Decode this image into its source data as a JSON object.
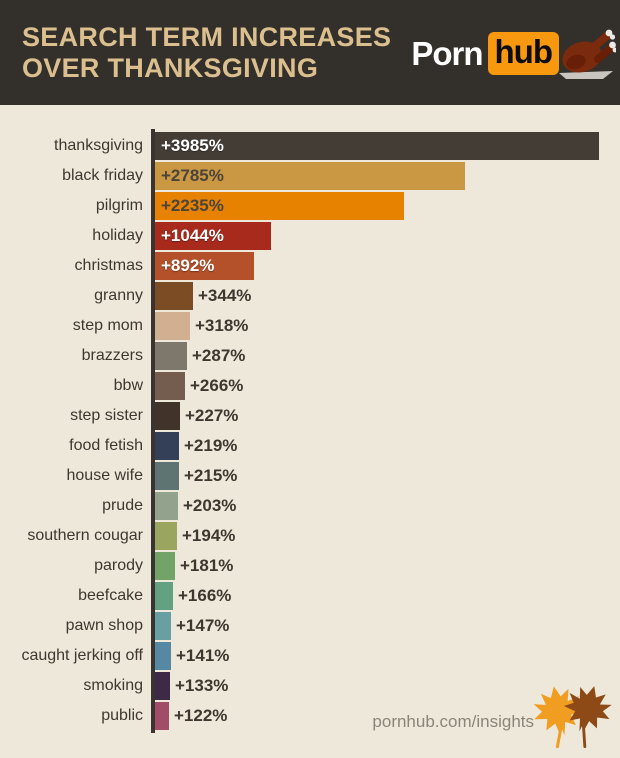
{
  "header": {
    "title_line1": "SEARCH TERM INCREASES",
    "title_line2": "OVER THANKSGIVING",
    "title_color": "#dbbf8e",
    "bg_color": "#332f2b",
    "logo": {
      "part1": "Porn",
      "part2": "hub",
      "badge_color": "#f8980f",
      "icon": "roast-turkey-icon"
    }
  },
  "chart_data": {
    "type": "bar",
    "orientation": "horizontal",
    "title": "SEARCH TERM INCREASES OVER THANKSGIVING",
    "xlabel": "",
    "ylabel": "",
    "xlim": [
      0,
      3985
    ],
    "grid": false,
    "legend": false,
    "axis_color": "#393430",
    "categories": [
      "thanksgiving",
      "black friday",
      "pilgrim",
      "holiday",
      "christmas",
      "granny",
      "step mom",
      "brazzers",
      "bbw",
      "step sister",
      "food fetish",
      "house wife",
      "prude",
      "southern cougar",
      "parody",
      "beefcake",
      "pawn shop",
      "caught jerking off",
      "smoking",
      "public"
    ],
    "values": [
      3985,
      2785,
      2235,
      1044,
      892,
      344,
      318,
      287,
      266,
      227,
      219,
      215,
      203,
      194,
      181,
      166,
      147,
      141,
      133,
      122
    ],
    "bars": [
      {
        "term": "thanksgiving",
        "value": 3985,
        "label": "+3985%",
        "color": "#443d36",
        "label_inside": true,
        "label_color": "#ffffff"
      },
      {
        "term": "black friday",
        "value": 2785,
        "label": "+2785%",
        "color": "#ca9743",
        "label_inside": true,
        "label_color": "#4b443b"
      },
      {
        "term": "pilgrim",
        "value": 2235,
        "label": "+2235%",
        "color": "#e68200",
        "label_inside": true,
        "label_color": "#4b443b"
      },
      {
        "term": "holiday",
        "value": 1044,
        "label": "+1044%",
        "color": "#a72a1d",
        "label_inside": true,
        "label_color": "#ffffff"
      },
      {
        "term": "christmas",
        "value": 892,
        "label": "+892%",
        "color": "#b4512a",
        "label_inside": true,
        "label_color": "#ffffff"
      },
      {
        "term": "granny",
        "value": 344,
        "label": "+344%",
        "color": "#7c4c24",
        "label_inside": false,
        "label_color": "#3d372f"
      },
      {
        "term": "step mom",
        "value": 318,
        "label": "+318%",
        "color": "#d0b090",
        "label_inside": false,
        "label_color": "#3d372f"
      },
      {
        "term": "brazzers",
        "value": 287,
        "label": "+287%",
        "color": "#7d776c",
        "label_inside": false,
        "label_color": "#3d372f"
      },
      {
        "term": "bbw",
        "value": 266,
        "label": "+266%",
        "color": "#745c4e",
        "label_inside": false,
        "label_color": "#3d372f"
      },
      {
        "term": "step sister",
        "value": 227,
        "label": "+227%",
        "color": "#40332a",
        "label_inside": false,
        "label_color": "#3d372f"
      },
      {
        "term": "food fetish",
        "value": 219,
        "label": "+219%",
        "color": "#344057",
        "label_inside": false,
        "label_color": "#3d372f"
      },
      {
        "term": "house wife",
        "value": 215,
        "label": "+215%",
        "color": "#5d7473",
        "label_inside": false,
        "label_color": "#3d372f"
      },
      {
        "term": "prude",
        "value": 203,
        "label": "+203%",
        "color": "#93a28c",
        "label_inside": false,
        "label_color": "#3d372f"
      },
      {
        "term": "southern cougar",
        "value": 194,
        "label": "+194%",
        "color": "#9aa55f",
        "label_inside": false,
        "label_color": "#3d372f"
      },
      {
        "term": "parody",
        "value": 181,
        "label": "+181%",
        "color": "#72a468",
        "label_inside": false,
        "label_color": "#3d372f"
      },
      {
        "term": "beefcake",
        "value": 166,
        "label": "+166%",
        "color": "#64a183",
        "label_inside": false,
        "label_color": "#3d372f"
      },
      {
        "term": "pawn shop",
        "value": 147,
        "label": "+147%",
        "color": "#689fa3",
        "label_inside": false,
        "label_color": "#3d372f"
      },
      {
        "term": "caught jerking off",
        "value": 141,
        "label": "+141%",
        "color": "#5688a3",
        "label_inside": false,
        "label_color": "#3d372f"
      },
      {
        "term": "smoking",
        "value": 133,
        "label": "+133%",
        "color": "#3c2a47",
        "label_inside": false,
        "label_color": "#3d372f"
      },
      {
        "term": "public",
        "value": 122,
        "label": "+122%",
        "color": "#a24d68",
        "label_inside": false,
        "label_color": "#3d372f"
      }
    ]
  },
  "footer": {
    "link_text": "pornhub.com/insights",
    "text_color": "#8c8478",
    "icon": "maple-leaves-icon",
    "leaf_colors": [
      "#f09d22",
      "#8d4a16"
    ]
  },
  "page": {
    "bg_color": "#eee8da",
    "label_color": "#3d372f"
  }
}
